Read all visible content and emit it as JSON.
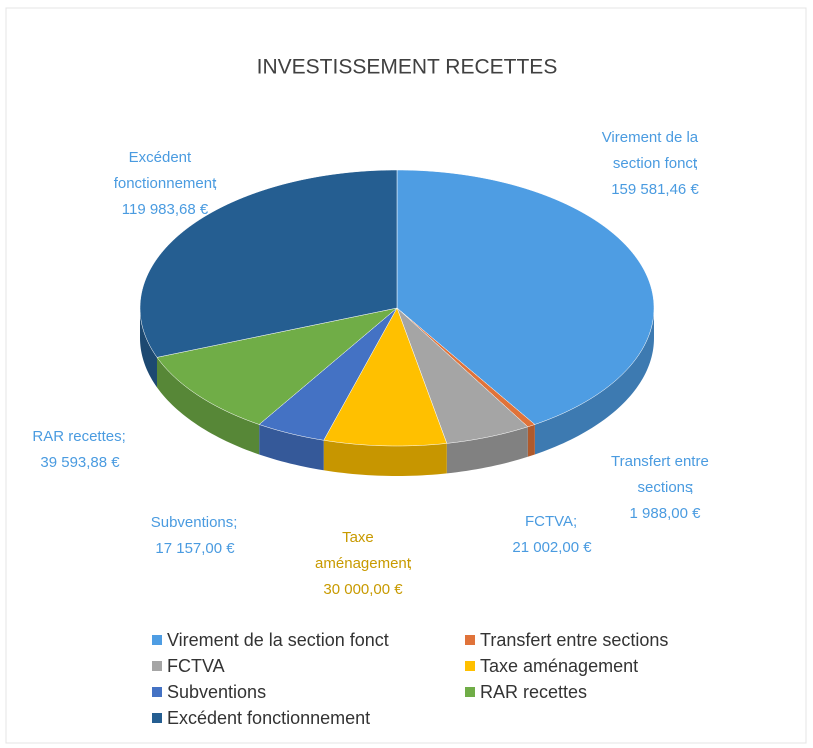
{
  "chart_data": {
    "type": "pie",
    "title": "INVESTISSEMENT RECETTES",
    "categories": [
      "Virement de la section fonct",
      "Transfert entre sections",
      "FCTVA",
      "Taxe aménagement",
      "Subventions",
      "RAR recettes",
      "Excédent fonctionnement"
    ],
    "values": [
      159581.46,
      1988,
      21002,
      30000,
      17157,
      39593.88,
      119983.68
    ],
    "value_labels": [
      "159 581,46 €",
      "1 988,00 €",
      "21 002,00 €",
      "30 000,00 €",
      "17 157,00 €",
      "39 593,88 €",
      "119 983,68 €"
    ],
    "label_separator": ";",
    "colors": [
      "#4e9de3",
      "#e0733a",
      "#a5a5a5",
      "#ffc000",
      "#4472c4",
      "#70ad47",
      "#255e91"
    ],
    "label_colors": [
      "#4a9be0",
      "#4a9be0",
      "#4a9be0",
      "#c89a00",
      "#4a9be0",
      "#4a9be0",
      "#4a9be0"
    ],
    "legend": "bottom"
  }
}
